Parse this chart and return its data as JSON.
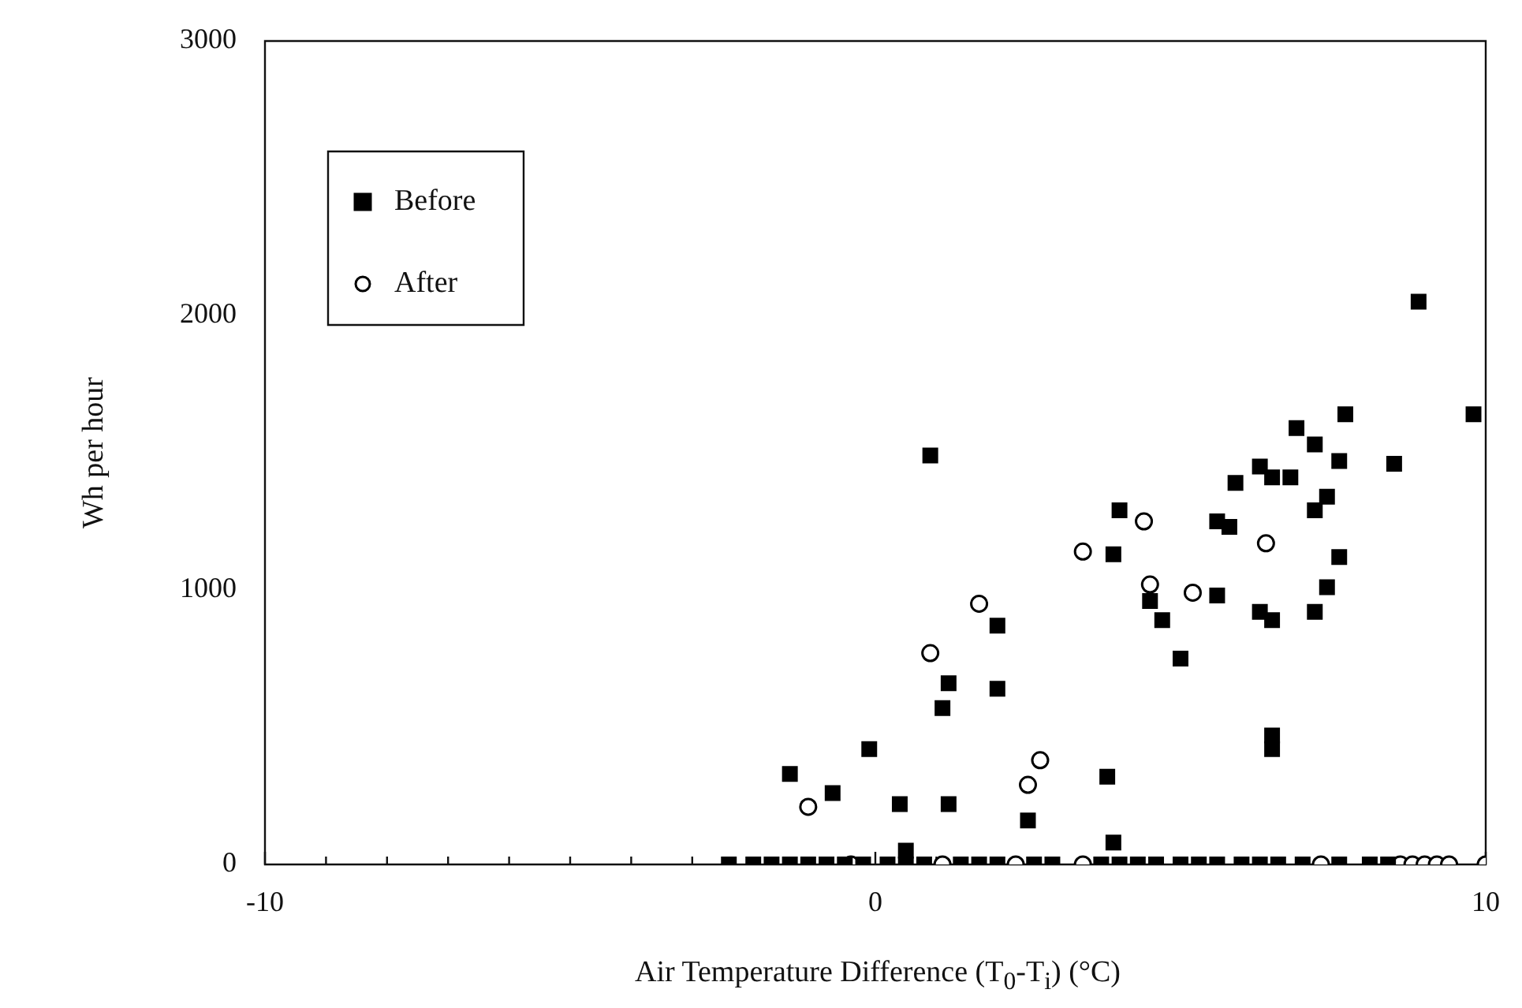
{
  "chart_data": {
    "type": "scatter",
    "xlabel": "Air Temperature Difference (T$_{0}$-T$_{i}$) (°C)",
    "ylabel": "Wh per hour",
    "xlim": [
      -10,
      10
    ],
    "ylim": [
      0,
      3000
    ],
    "xticks": [
      -10,
      {
        "value": -9,
        "label": null
      },
      {
        "value": -8,
        "label": null
      },
      {
        "value": -7,
        "label": null
      },
      {
        "value": -6,
        "label": null
      },
      {
        "value": -5,
        "label": null
      },
      {
        "value": -4,
        "label": null
      },
      {
        "value": -3,
        "label": null
      },
      {
        "value": -2,
        "label": null
      },
      {
        "value": -1,
        "label": null
      },
      0,
      {
        "value": 1,
        "label": null
      },
      {
        "value": 2,
        "label": null
      },
      {
        "value": 3,
        "label": null
      },
      {
        "value": 4,
        "label": null
      },
      {
        "value": 5,
        "label": null
      },
      {
        "value": 6,
        "label": null
      },
      {
        "value": 7,
        "label": null
      },
      {
        "value": 8,
        "label": null
      },
      {
        "value": 9,
        "label": null
      },
      10
    ],
    "yticks": [
      0,
      1000,
      2000,
      3000
    ],
    "grid": false,
    "legend": "top left",
    "series": [
      {
        "name": "Before",
        "color": "#000000",
        "marker": "square",
        "x": [
          0.9,
          1.2,
          1.1,
          -0.1,
          -1.4,
          -0.7,
          0.4,
          1.2,
          0.5,
          8.9,
          9.8,
          7.7,
          6.9,
          7.2,
          7.6,
          8.5,
          6.3,
          6.5,
          6.8,
          5.9,
          7.4,
          7.2,
          4.0,
          5.6,
          5.8,
          3.9,
          7.6,
          7.4,
          4.5,
          5.6,
          2.0,
          4.7,
          6.3,
          6.5,
          7.2,
          5.0,
          2.0,
          6.5,
          6.5,
          3.8,
          2.5,
          3.9,
          -2.4,
          -2.0,
          -1.7,
          -1.4,
          -1.1,
          -0.8,
          -0.5,
          -0.2,
          0.2,
          0.5,
          0.8,
          1.4,
          1.7,
          2.0,
          2.6,
          2.9,
          3.7,
          4.0,
          4.3,
          4.6,
          5.0,
          5.3,
          5.6,
          6.0,
          6.3,
          6.6,
          7.0,
          7.6,
          8.1,
          8.4
        ],
        "values": [
          1490,
          660,
          570,
          420,
          330,
          260,
          220,
          220,
          50,
          2050,
          1640,
          1640,
          1590,
          1530,
          1470,
          1460,
          1450,
          1410,
          1410,
          1390,
          1340,
          1290,
          1290,
          1250,
          1230,
          1130,
          1120,
          1010,
          960,
          980,
          870,
          890,
          920,
          890,
          920,
          750,
          640,
          470,
          420,
          320,
          160,
          80,
          0,
          0,
          0,
          0,
          0,
          0,
          0,
          0,
          0,
          0,
          0,
          0,
          0,
          0,
          0,
          0,
          0,
          0,
          0,
          0,
          0,
          0,
          0,
          0,
          0,
          0,
          0,
          0,
          0,
          0
        ]
      },
      {
        "name": "After",
        "color": "#000000",
        "marker": "circle",
        "x": [
          1.7,
          0.9,
          -1.1,
          4.4,
          6.4,
          3.4,
          4.5,
          5.2,
          2.7,
          2.5,
          -0.4,
          1.1,
          2.3,
          3.4,
          7.3,
          8.6,
          8.8,
          9.0,
          9.2,
          9.4,
          10.0
        ],
        "values": [
          950,
          770,
          210,
          1250,
          1170,
          1140,
          1020,
          990,
          380,
          290,
          0,
          0,
          0,
          0,
          0,
          0,
          0,
          0,
          0,
          0,
          0
        ]
      }
    ]
  }
}
